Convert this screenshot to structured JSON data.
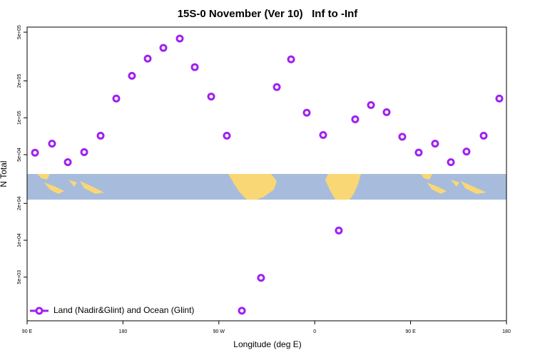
{
  "chart_data": {
    "type": "scatter",
    "title": "15S-0 November (Ver 10)   Inf to -Inf",
    "x_label": "Longitude (deg E)",
    "y_label": "N Total",
    "log_y": true,
    "legend_position": "bottom-left",
    "xlim": [
      90,
      540
    ],
    "ylim": [
      2200,
      550000
    ],
    "xticks": [
      {
        "value": 90,
        "label": "90 E"
      },
      180,
      {
        "value": 270,
        "label": "90 W"
      },
      {
        "value": 360,
        "label": "0"
      },
      {
        "value": 450,
        "label": "90 E"
      },
      {
        "value": 540,
        "label": "180"
      }
    ],
    "yticks": [
      {
        "value": 5000,
        "label": "5e+03"
      },
      {
        "value": 10000,
        "label": "1e+04"
      },
      {
        "value": 20000,
        "label": "2e+04"
      },
      {
        "value": 50000,
        "label": "5e+04"
      },
      {
        "value": 100000,
        "label": "1e+05"
      },
      {
        "value": 200000,
        "label": "2e+05"
      },
      {
        "value": 500000,
        "label": "5e+05"
      }
    ],
    "series": [
      {
        "name": "Land (Nadir&Glint) and Ocean (Glint)",
        "color": "#a020f0",
        "x": [
          97.4,
          113.4,
          128.2,
          143.6,
          159,
          173.7,
          188.4,
          203.2,
          217.9,
          233.3,
          247.4,
          262.8,
          277.5,
          291.6,
          309.6,
          324.4,
          337.8,
          352.5,
          367.9,
          382.6,
          398,
          412.8,
          427.5,
          442.2,
          457.6,
          473,
          487.8,
          502.5,
          518.6,
          533.3
        ],
        "values": [
          51800,
          61500,
          43400,
          52400,
          71400,
          143600,
          220000,
          304000,
          372000,
          443000,
          259000,
          149000,
          71400,
          2660,
          4930,
          178000,
          300000,
          110000,
          72300,
          12000,
          97200,
          127000,
          111000,
          70000,
          52000,
          61500,
          43400,
          53000,
          71400,
          143600
        ]
      }
    ]
  }
}
